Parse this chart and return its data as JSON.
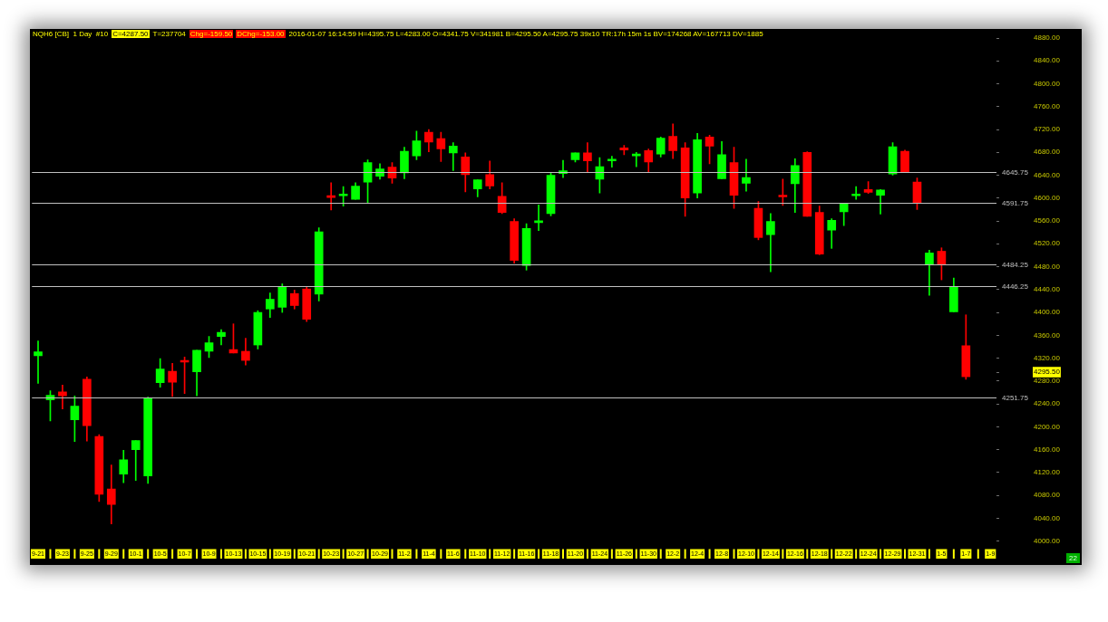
{
  "chart_data": {
    "type": "candlestick",
    "categories": [
      "9-21",
      null,
      "9-23",
      null,
      "9-25",
      null,
      "9-29",
      null,
      "10-1",
      null,
      "10-5",
      null,
      "10-7",
      null,
      "10-9",
      null,
      "10-13",
      null,
      "10-15",
      null,
      "10-19",
      null,
      "10-21",
      null,
      "10-23",
      null,
      "10-27",
      null,
      "10-29",
      null,
      "11-2",
      null,
      "11-4",
      null,
      "11-6",
      null,
      "11-10",
      null,
      "11-12",
      null,
      "11-16",
      null,
      "11-18",
      null,
      "11-20",
      null,
      "11-24",
      null,
      "11-26",
      null,
      "11-30",
      null,
      "12-2",
      null,
      "12-4",
      null,
      "12-8",
      null,
      "12-10",
      null,
      "12-14",
      null,
      "12-16",
      null,
      "12-18",
      null,
      "12-22",
      null,
      "12-24",
      null,
      "12-29",
      null,
      "12-31",
      null,
      "1-5",
      null,
      "1-7",
      null,
      "1-9"
    ],
    "ohlc": [
      [
        4324,
        4350,
        4276,
        4331
      ],
      [
        4247,
        4263,
        4210,
        4255
      ],
      [
        4261,
        4273,
        4231,
        4254
      ],
      [
        4212,
        4254,
        4174,
        4236
      ],
      [
        4283,
        4287,
        4175,
        4202
      ],
      [
        4183,
        4186,
        4069,
        4082
      ],
      [
        4091,
        4133,
        4030,
        4064
      ],
      [
        4117,
        4159,
        4102,
        4142
      ],
      [
        4160,
        4176,
        4106,
        4176
      ],
      [
        4114,
        4252,
        4101,
        4250
      ],
      [
        4277,
        4319,
        4269,
        4301
      ],
      [
        4297,
        4311,
        4253,
        4278
      ],
      [
        4315,
        4322,
        4258,
        4313
      ],
      [
        4296,
        4334,
        4254,
        4334
      ],
      [
        4332,
        4358,
        4321,
        4347
      ],
      [
        4358,
        4370,
        4343,
        4365
      ],
      [
        4335,
        4380,
        4329,
        4329
      ],
      [
        4332,
        4355,
        4308,
        4316
      ],
      [
        4343,
        4403,
        4336,
        4400
      ],
      [
        4406,
        4434,
        4391,
        4423
      ],
      [
        4409,
        4450,
        4400,
        4444
      ],
      [
        4433,
        4439,
        4406,
        4412
      ],
      [
        4441,
        4444,
        4384,
        4388
      ],
      [
        4432,
        4548,
        4420,
        4541
      ],
      [
        4603,
        4627,
        4579,
        4601
      ],
      [
        4604,
        4620,
        4586,
        4606
      ],
      [
        4598,
        4627,
        4598,
        4621
      ],
      [
        4628,
        4667,
        4592,
        4662
      ],
      [
        4638,
        4660,
        4633,
        4651
      ],
      [
        4654,
        4662,
        4626,
        4635
      ],
      [
        4644,
        4689,
        4634,
        4682
      ],
      [
        4674,
        4717,
        4667,
        4700
      ],
      [
        4715,
        4720,
        4681,
        4698
      ],
      [
        4704,
        4715,
        4664,
        4686
      ],
      [
        4679,
        4697,
        4648,
        4691
      ],
      [
        4672,
        4679,
        4611,
        4641
      ],
      [
        4616,
        4632,
        4602,
        4632
      ],
      [
        4641,
        4665,
        4616,
        4621
      ],
      [
        4603,
        4627,
        4573,
        4575
      ],
      [
        4559,
        4564,
        4486,
        4491
      ],
      [
        4482,
        4555,
        4474,
        4547
      ],
      [
        4557,
        4588,
        4543,
        4559
      ],
      [
        4573,
        4645,
        4569,
        4640
      ],
      [
        4643,
        4666,
        4636,
        4648
      ],
      [
        4667,
        4679,
        4663,
        4679
      ],
      [
        4679,
        4697,
        4645,
        4665
      ],
      [
        4633,
        4671,
        4609,
        4655
      ],
      [
        4665,
        4673,
        4654,
        4667
      ],
      [
        4688,
        4692,
        4676,
        4684
      ],
      [
        4674,
        4680,
        4655,
        4675
      ],
      [
        4683,
        4686,
        4645,
        4663
      ],
      [
        4677,
        4707,
        4672,
        4705
      ],
      [
        4708,
        4730,
        4669,
        4683
      ],
      [
        4688,
        4697,
        4568,
        4600
      ],
      [
        4609,
        4713,
        4600,
        4702
      ],
      [
        4707,
        4710,
        4660,
        4691
      ],
      [
        4634,
        4699,
        4634,
        4676
      ],
      [
        4662,
        4689,
        4582,
        4605
      ],
      [
        4626,
        4668,
        4612,
        4636
      ],
      [
        4582,
        4594,
        4527,
        4531
      ],
      [
        4536,
        4573,
        4471,
        4559
      ],
      [
        4604,
        4633,
        4587,
        4602
      ],
      [
        4625,
        4669,
        4575,
        4657
      ],
      [
        4680,
        4681,
        4568,
        4568
      ],
      [
        4575,
        4586,
        4501,
        4502
      ],
      [
        4544,
        4564,
        4512,
        4561
      ],
      [
        4576,
        4590,
        4552,
        4590
      ],
      [
        4604,
        4620,
        4598,
        4606
      ],
      [
        4615,
        4629,
        4608,
        4610
      ],
      [
        4605,
        4615,
        4572,
        4614
      ],
      [
        4642,
        4697,
        4640,
        4690
      ],
      [
        4682,
        4684,
        4646,
        4646
      ],
      [
        4628,
        4635,
        4580,
        4592
      ],
      [
        4484,
        4509,
        4430,
        4504
      ],
      [
        4507,
        4513,
        4457,
        4484
      ],
      [
        4401,
        4460,
        4401,
        4445
      ],
      [
        4341.75,
        4395.75,
        4283,
        4287.5
      ],
      null,
      null
    ],
    "colors": [
      "#00ff00",
      "#00ff00",
      "#ff0000",
      "#00ff00",
      "#ff0000",
      "#ff0000",
      "#ff0000",
      "#00ff00",
      "#00ff00",
      "#00ff00",
      "#00ff00",
      "#ff0000",
      "#ff0000",
      "#00ff00",
      "#00ff00",
      "#00ff00",
      "#ff0000",
      "#ff0000",
      "#00ff00",
      "#00ff00",
      "#00ff00",
      "#ff0000",
      "#ff0000",
      "#00ff00",
      "#ff0000",
      "#00ff00",
      "#00ff00",
      "#00ff00",
      "#00ff00",
      "#ff0000",
      "#00ff00",
      "#00ff00",
      "#ff0000",
      "#ff0000",
      "#00ff00",
      "#ff0000",
      "#00ff00",
      "#ff0000",
      "#ff0000",
      "#ff0000",
      "#00ff00",
      "#00ff00",
      "#00ff00",
      "#00ff00",
      "#00ff00",
      "#ff0000",
      "#00ff00",
      "#00ff00",
      "#ff0000",
      "#00ff00",
      "#ff0000",
      "#00ff00",
      "#ff0000",
      "#ff0000",
      "#00ff00",
      "#ff0000",
      "#00ff00",
      "#ff0000",
      "#00ff00",
      "#ff0000",
      "#00ff00",
      "#ff0000",
      "#00ff00",
      "#ff0000",
      "#ff0000",
      "#00ff00",
      "#00ff00",
      "#00ff00",
      "#ff0000",
      "#00ff00",
      "#00ff00",
      "#ff0000",
      "#ff0000",
      "#00ff00",
      "#ff0000",
      "#00ff00",
      "#ff0000",
      null,
      null
    ],
    "ylim": [
      4000,
      4880
    ],
    "yticks": [
      {
        "value": 4000,
        "label": "4000.00"
      },
      {
        "value": 4040,
        "label": "4040.00"
      },
      {
        "value": 4080,
        "label": "4080.00"
      },
      {
        "value": 4120,
        "label": "4120.00"
      },
      {
        "value": 4160,
        "label": "4160.00"
      },
      {
        "value": 4200,
        "label": "4200.00"
      },
      {
        "value": 4240,
        "label": "4240.00"
      },
      {
        "value": 4280,
        "label": "4280.00"
      },
      {
        "value": 4295.5,
        "label": "4295.50"
      },
      {
        "value": 4320,
        "label": "4320.00"
      },
      {
        "value": 4360,
        "label": "4360.00"
      },
      {
        "value": 4400,
        "label": "4400.00"
      },
      {
        "value": 4440,
        "label": "4440.00"
      },
      {
        "value": 4480,
        "label": "4480.00"
      },
      {
        "value": 4520,
        "label": "4520.00"
      },
      {
        "value": 4560,
        "label": "4560.00"
      },
      {
        "value": 4600,
        "label": "4600.00"
      },
      {
        "value": 4640,
        "label": "4640.00"
      },
      {
        "value": 4680,
        "label": "4680.00"
      },
      {
        "value": 4720,
        "label": "4720.00"
      },
      {
        "value": 4760,
        "label": "4760.00"
      },
      {
        "value": 4800,
        "label": "4800.00"
      },
      {
        "value": 4840,
        "label": "4840.00"
      },
      {
        "value": 4880,
        "label": "4880.00"
      }
    ],
    "ref_lines": [
      {
        "axis": "y",
        "value": 4645.75,
        "label": "4645.75",
        "color": "#c0c0c0"
      },
      {
        "axis": "y",
        "value": 4591.75,
        "label": "4591.75",
        "color": "#c0c0c0"
      },
      {
        "axis": "y",
        "value": 4484.25,
        "label": "4484.25",
        "color": "#c0c0c0"
      },
      {
        "axis": "y",
        "value": 4446.25,
        "label": "4446.25",
        "color": "#c0c0c0"
      },
      {
        "axis": "y",
        "value": 4251.75,
        "label": "4251.75",
        "color": "#c0c0c0"
      }
    ],
    "annotations": [
      "NQH6 [CB]  1 Day  #10",
      "C=4287.50",
      "T=237704",
      "Chg=-159.50",
      "DChg=-153.00",
      "2016-01-07 16:14:59 H=4395.75 L=4283.00 O=4341.75 V=341981 B=4295.50 A=4295.75 39x10 TR:17h 15m 1s BV=174268 AV=167713 DV=1885",
      "22"
    ],
    "legend": false
  }
}
